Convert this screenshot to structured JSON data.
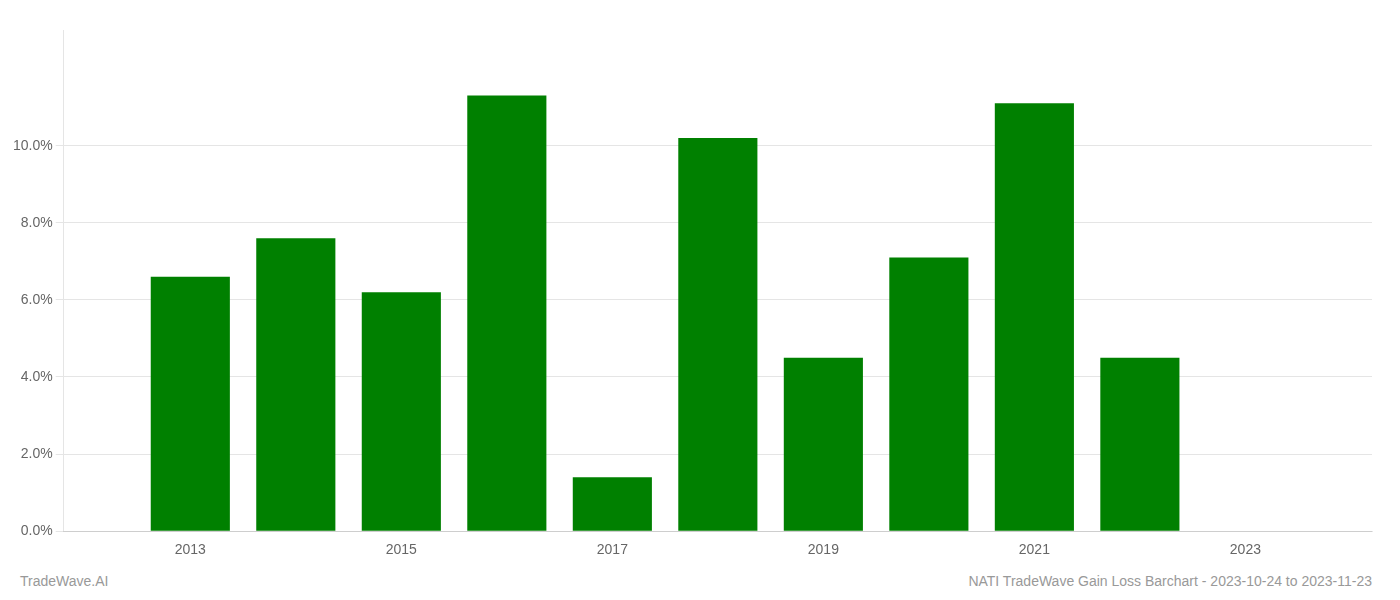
{
  "chart_data": {
    "type": "bar",
    "x": [
      2013,
      2014,
      2015,
      2016,
      2017,
      2018,
      2019,
      2020,
      2021,
      2022
    ],
    "values": [
      0.066,
      0.076,
      0.062,
      0.113,
      0.014,
      0.102,
      0.045,
      0.071,
      0.111,
      0.045
    ],
    "color": "#008000",
    "xlim": [
      2011.8,
      2024.2
    ],
    "xticks": [
      2013,
      2015,
      2017,
      2019,
      2021,
      2023
    ],
    "ylim": [
      0,
      0.13
    ],
    "yticks": [
      {
        "value": 0.0,
        "label": "0.0%"
      },
      {
        "value": 0.02,
        "label": "2.0%"
      },
      {
        "value": 0.04,
        "label": "4.0%"
      },
      {
        "value": 0.06,
        "label": "6.0%"
      },
      {
        "value": 0.08,
        "label": "8.0%"
      },
      {
        "value": 0.1,
        "label": "10.0%"
      }
    ],
    "grid": true,
    "annotations": [
      "TradeWave.AI",
      "NATI TradeWave Gain Loss Barchart - 2023-10-24 to 2023-11-23"
    ]
  }
}
